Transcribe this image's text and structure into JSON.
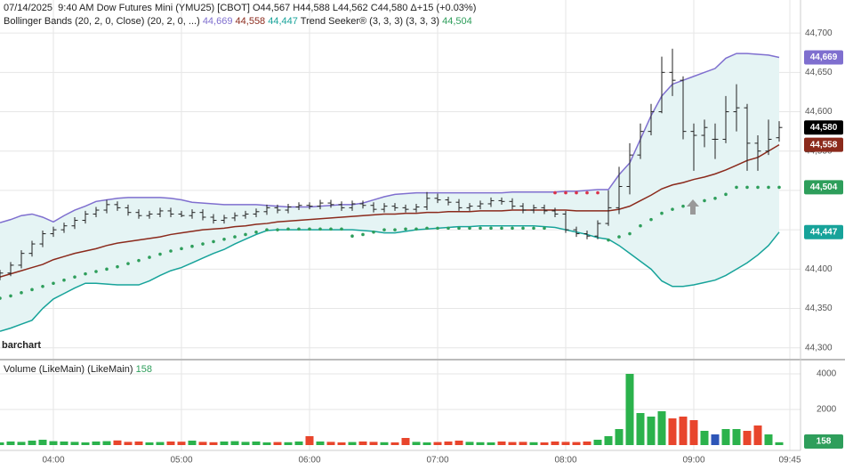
{
  "chart_data": [
    {
      "type": "ohlc",
      "title": "07/14/2025  9:40 AM Dow Futures Mini (YMU25) [CBOT] O44,567 H44,588 L44,562 C44,580 Δ+15 (+0.03%)",
      "watermark": "barchart",
      "color": "#222",
      "last_label": "44,580",
      "last_color": "#000",
      "x": [
        215,
        220,
        225,
        230,
        235,
        240,
        245,
        250,
        255,
        260,
        265,
        270,
        275,
        280,
        285,
        290,
        295,
        300,
        305,
        310,
        315,
        320,
        325,
        330,
        335,
        340,
        345,
        350,
        355,
        360,
        365,
        370,
        375,
        380,
        385,
        390,
        395,
        400,
        405,
        410,
        415,
        420,
        425,
        430,
        435,
        440,
        445,
        450,
        455,
        460,
        465,
        470,
        475,
        480,
        485,
        490,
        495,
        500,
        505,
        510,
        515,
        520,
        525,
        530,
        535,
        540,
        545,
        550,
        555,
        560,
        565,
        570,
        575,
        580
      ],
      "open": [
        44390,
        44395,
        44405,
        44420,
        44432,
        44445,
        44450,
        44455,
        44462,
        44470,
        44475,
        44482,
        44478,
        44472,
        44468,
        44470,
        44474,
        44470,
        44468,
        44472,
        44466,
        44462,
        44465,
        44468,
        44470,
        44473,
        44478,
        44475,
        44479,
        44481,
        44480,
        44484,
        44482,
        44478,
        44483,
        44481,
        44476,
        44480,
        44478,
        44476,
        44479,
        44490,
        44488,
        44485,
        44478,
        44480,
        44483,
        44487,
        44486,
        44480,
        44475,
        44478,
        44474,
        44470,
        44450,
        44445,
        44442,
        44458,
        44478,
        44505,
        44545,
        44575,
        44600,
        44650,
        44640,
        44575,
        44570,
        44565,
        44565,
        44600,
        44605,
        44560,
        44550,
        44567
      ],
      "high": [
        44399,
        44409,
        44424,
        44436,
        44449,
        44454,
        44459,
        44466,
        44474,
        44479,
        44488,
        44486,
        44482,
        44476,
        44474,
        44478,
        44478,
        44474,
        44476,
        44476,
        44470,
        44469,
        44472,
        44474,
        44477,
        44482,
        44482,
        44483,
        44485,
        44485,
        44488,
        44488,
        44486,
        44487,
        44487,
        44485,
        44484,
        44484,
        44482,
        44483,
        44498,
        44496,
        44492,
        44489,
        44484,
        44487,
        44491,
        44491,
        44490,
        44484,
        44482,
        44482,
        44478,
        44474,
        44454,
        44449,
        44462,
        44500,
        44530,
        44560,
        44585,
        44610,
        44670,
        44680,
        44645,
        44585,
        44590,
        44585,
        44620,
        44635,
        44610,
        44570,
        44590,
        44588
      ],
      "low": [
        44386,
        44391,
        44401,
        44416,
        44428,
        44441,
        44446,
        44451,
        44458,
        44466,
        44471,
        44474,
        44468,
        44464,
        44464,
        44466,
        44466,
        44466,
        44464,
        44462,
        44458,
        44458,
        44461,
        44464,
        44466,
        44469,
        44471,
        44471,
        44475,
        44476,
        44476,
        44478,
        44474,
        44474,
        44477,
        44472,
        44472,
        44474,
        44472,
        44472,
        44475,
        44484,
        44481,
        44474,
        44474,
        44476,
        44479,
        44482,
        44476,
        44471,
        44471,
        44470,
        44466,
        44446,
        44441,
        44438,
        44438,
        44455,
        44470,
        44495,
        44540,
        44570,
        44598,
        44620,
        44565,
        44525,
        44555,
        44540,
        44560,
        44575,
        44525,
        44525,
        44545,
        44562
      ],
      "close": [
        44395,
        44405,
        44420,
        44432,
        44445,
        44450,
        44455,
        44462,
        44470,
        44475,
        44482,
        44478,
        44472,
        44468,
        44470,
        44474,
        44470,
        44468,
        44472,
        44466,
        44462,
        44465,
        44468,
        44470,
        44473,
        44478,
        44475,
        44479,
        44481,
        44480,
        44484,
        44482,
        44478,
        44483,
        44481,
        44476,
        44480,
        44478,
        44476,
        44479,
        44490,
        44488,
        44485,
        44478,
        44480,
        44483,
        44487,
        44486,
        44480,
        44475,
        44478,
        44474,
        44470,
        44450,
        44445,
        44442,
        44458,
        44478,
        44505,
        44545,
        44575,
        44600,
        44650,
        44640,
        44575,
        44570,
        44580,
        44565,
        44600,
        44605,
        44560,
        44550,
        44565,
        44580
      ],
      "indicators": [
        {
          "type": "line",
          "name": "Bollinger Bands (20, 2, 0, Close)",
          "params": "(20, 2, 0, ...)",
          "fill": "#e5f4f4",
          "series": [
            {
              "color": "#7f6fcf",
              "last_label": "44,669",
              "values": [
                44459,
                44463,
                44468,
                44470,
                44466,
                44460,
                44468,
                44475,
                44480,
                44486,
                44488,
                44490,
                44491,
                44491,
                44491,
                44491,
                44490,
                44488,
                44485,
                44484,
                44483,
                44482,
                44482,
                44482,
                44482,
                44481,
                44480,
                44479,
                44479,
                44479,
                44480,
                44481,
                44482,
                44482,
                44484,
                44488,
                44492,
                44495,
                44496,
                44497,
                44497,
                44497,
                44497,
                44497,
                44497,
                44497,
                44497,
                44497,
                44498,
                44498,
                44498,
                44498,
                44498,
                44499,
                44499,
                44500,
                44501,
                44501,
                44520,
                44535,
                44565,
                44595,
                44620,
                44635,
                44640,
                44645,
                44650,
                44655,
                44668,
                44674,
                44674,
                44673,
                44672,
                44669
              ]
            },
            {
              "color": "#8b2a1c",
              "last_label": "44,558",
              "values": [
                44390,
                44394,
                44398,
                44402,
                44406,
                44412,
                44416,
                44420,
                44423,
                44426,
                44430,
                44433,
                44435,
                44437,
                44439,
                44441,
                44444,
                44446,
                44448,
                44450,
                44451,
                44452,
                44454,
                44455,
                44457,
                44458,
                44460,
                44461,
                44462,
                44463,
                44464,
                44465,
                44466,
                44467,
                44468,
                44469,
                44470,
                44470,
                44471,
                44471,
                44472,
                44472,
                44473,
                44473,
                44473,
                44474,
                44474,
                44474,
                44475,
                44475,
                44475,
                44475,
                44475,
                44475,
                44474,
                44474,
                44474,
                44474,
                44476,
                44480,
                44487,
                44494,
                44502,
                44507,
                44510,
                44514,
                44517,
                44521,
                44526,
                44532,
                44538,
                44542,
                44550,
                44558
              ]
            },
            {
              "color": "#17a39a",
              "last_label": "44,447",
              "values": [
                44321,
                44325,
                44330,
                44335,
                44350,
                44362,
                44369,
                44376,
                44382,
                44382,
                44381,
                44380,
                44380,
                44380,
                44385,
                44392,
                44398,
                44402,
                44408,
                44414,
                44420,
                44425,
                44432,
                44438,
                44444,
                44449,
                44450,
                44450,
                44450,
                44450,
                44450,
                44450,
                44450,
                44450,
                44449,
                44448,
                44446,
                44446,
                44448,
                44450,
                44451,
                44452,
                44453,
                44454,
                44454,
                44455,
                44455,
                44455,
                44455,
                44455,
                44455,
                44454,
                44453,
                44450,
                44447,
                44444,
                44440,
                44438,
                44430,
                44420,
                44410,
                44400,
                44385,
                44378,
                44378,
                44380,
                44383,
                44386,
                44392,
                44400,
                44408,
                44418,
                44430,
                44447
              ]
            }
          ]
        },
        {
          "type": "dots",
          "name": "Trend Seeker® (3, 3, 3)",
          "params": "(3, 3, 3)",
          "series": [
            {
              "color": "#2e9e5b",
              "down_color": "#d9334a",
              "last_label": "44,504",
              "values": [
                44363,
                44366,
                44370,
                44374,
                44378,
                44382,
                44386,
                44390,
                44394,
                44397,
                44400,
                44403,
                44407,
                44411,
                44415,
                44419,
                44423,
                44426,
                44429,
                44432,
                44435,
                44438,
                44441,
                44444,
                44447,
                44450,
                44450,
                44451,
                44451,
                44451,
                44451,
                44451,
                44451,
                44442,
                44444,
                44447,
                44450,
                44450,
                44451,
                44451,
                44452,
                44452,
                44452,
                44452,
                44452,
                44452,
                44452,
                44452,
                44452,
                44452,
                44452,
                44452,
                44497,
                44497,
                44497,
                44497,
                44497,
                44437,
                44441,
                44445,
                44455,
                44463,
                44471,
                44476,
                44480,
                44484,
                44487,
                44490,
                44495,
                44504,
                44504,
                44504,
                44504,
                44504
              ]
            }
          ]
        }
      ],
      "xlim": [
        215,
        590
      ],
      "xticks": [
        {
          "value": 240,
          "label": "04:00"
        },
        {
          "value": 300,
          "label": "05:00"
        },
        {
          "value": 360,
          "label": "06:00"
        },
        {
          "value": 420,
          "label": "07:00"
        },
        {
          "value": 480,
          "label": "08:00"
        },
        {
          "value": 540,
          "label": "09:00"
        },
        {
          "value": 585,
          "label": "09:45"
        }
      ],
      "ylim": [
        44285,
        44742
      ],
      "yticks": [
        {
          "value": 44300,
          "label": "44,300"
        },
        {
          "value": 44350,
          "label": "44,350"
        },
        {
          "value": 44400,
          "label": "44,400"
        },
        {
          "value": 44450,
          "label": "44,450"
        },
        {
          "value": 44500,
          "label": "44,500"
        },
        {
          "value": 44550,
          "label": "44,550"
        },
        {
          "value": 44600,
          "label": "44,600"
        },
        {
          "value": 44650,
          "label": "44,650"
        },
        {
          "value": 44700,
          "label": "44,700"
        }
      ],
      "grid": true
    },
    {
      "type": "bar",
      "title": "Volume (LikeMain)",
      "params": "(LikeMain)",
      "up_color": "#2bb24c",
      "down_color": "#e8452c",
      "flat_color": "#2e56b8",
      "last_color": "#2e9e5b",
      "values": [
        150,
        200,
        180,
        250,
        300,
        220,
        200,
        180,
        150,
        200,
        220,
        260,
        180,
        200,
        150,
        170,
        200,
        190,
        250,
        180,
        160,
        200,
        220,
        180,
        200,
        150,
        170,
        160,
        200,
        500,
        200,
        180,
        150,
        170,
        200,
        180,
        160,
        150,
        400,
        180,
        150,
        170,
        200,
        250,
        180,
        160,
        150,
        200,
        170,
        180,
        160,
        150,
        200,
        180,
        170,
        200,
        300,
        500,
        900,
        4000,
        1800,
        1600,
        1900,
        1500,
        1600,
        1400,
        800,
        600,
        900,
        900,
        800,
        1100,
        600,
        158
      ],
      "ylim": [
        0,
        4750
      ],
      "yticks": [
        2000,
        4000
      ],
      "grid": true
    }
  ]
}
